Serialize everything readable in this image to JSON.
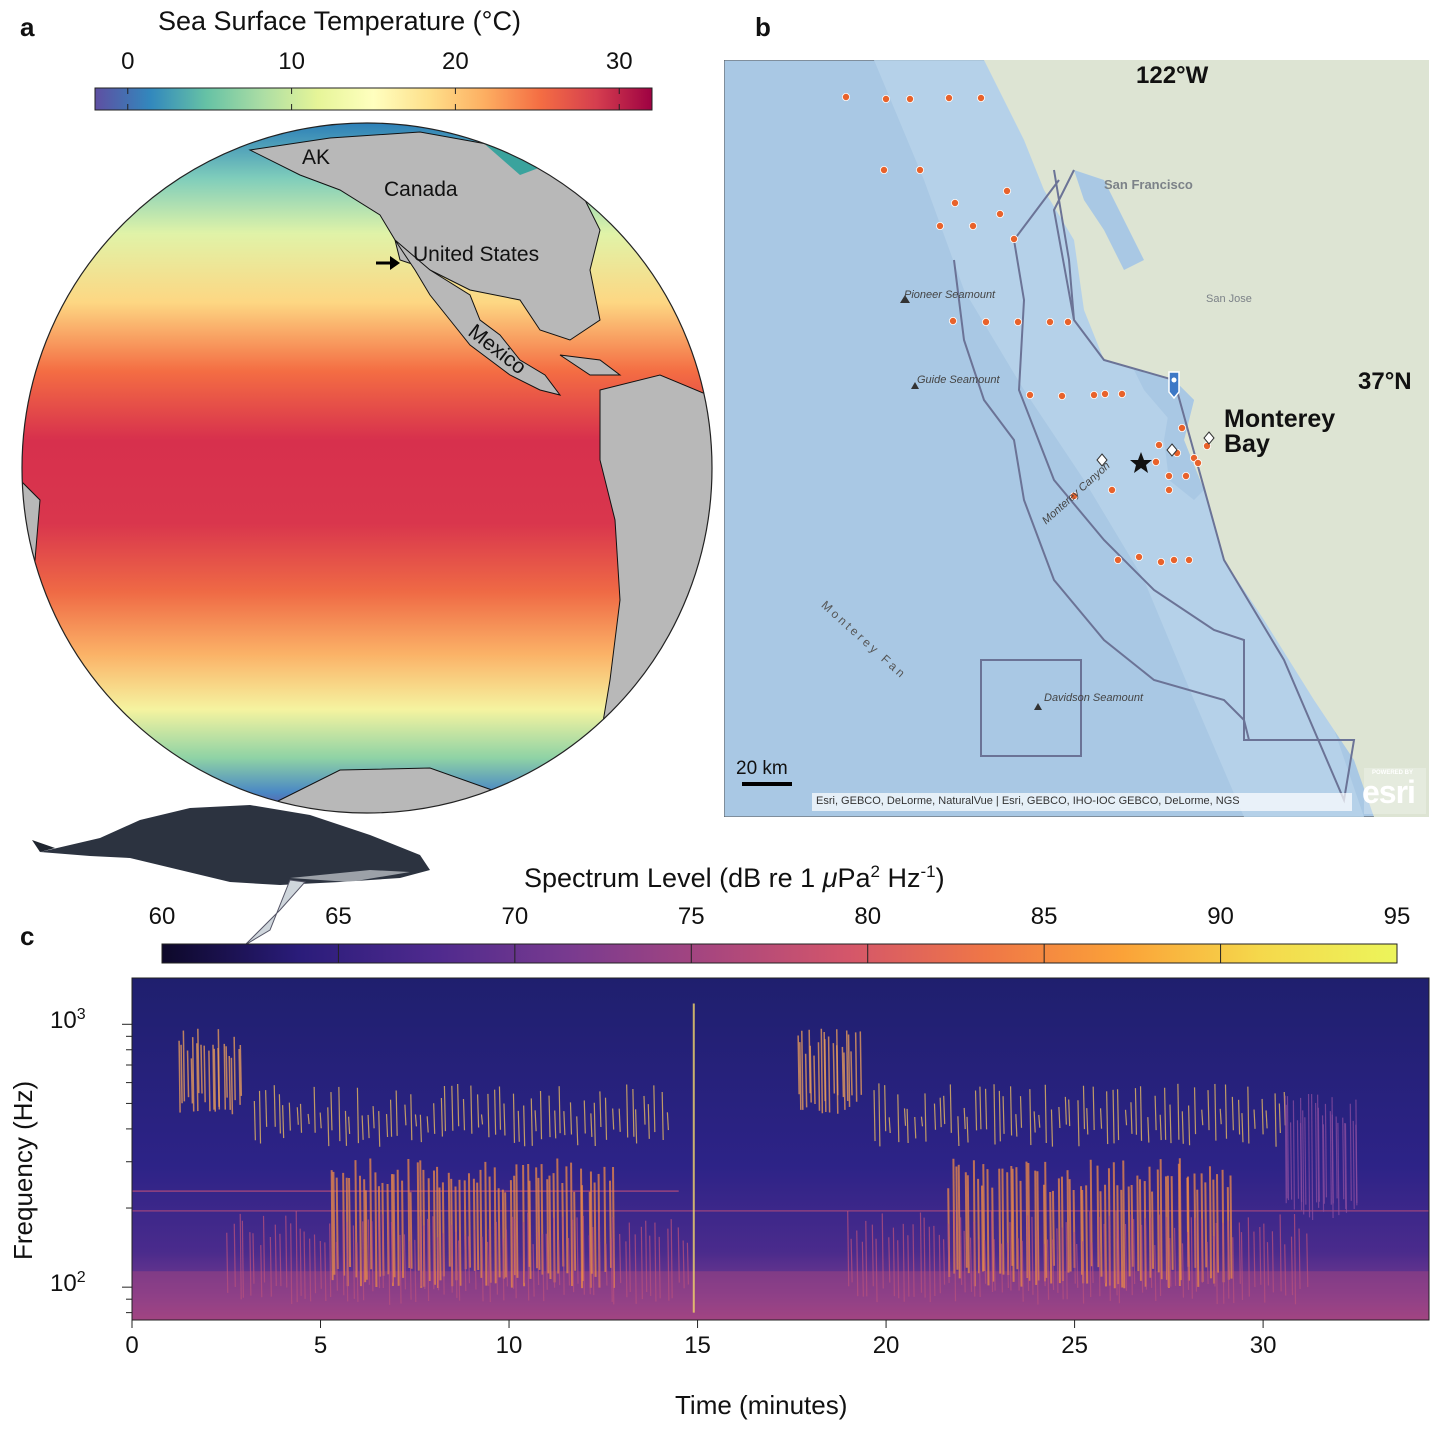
{
  "panels": {
    "a": {
      "letter": "a",
      "colorbar": {
        "title": "Sea Surface Temperature (°C)",
        "ticks": [
          "0",
          "10",
          "20",
          "30"
        ],
        "range": [
          -2,
          32
        ],
        "tick_values": [
          0,
          10,
          20,
          30
        ],
        "colors": [
          "#5e4fa2",
          "#3288bd",
          "#66c2a5",
          "#abdda4",
          "#e6f598",
          "#ffffbf",
          "#fee08b",
          "#fdae61",
          "#f46d43",
          "#d53e4f",
          "#9e0142"
        ]
      },
      "labels": {
        "ak": "AK",
        "canada": "Canada",
        "united_states": "United States",
        "mexico": "Mexico"
      }
    },
    "b": {
      "letter": "b",
      "lon_label": "122°W",
      "lat_label": "37°N",
      "bay_label_1": "Monterey",
      "bay_label_2": "Bay",
      "places": {
        "san_francisco": "San Francisco",
        "san_jose": "San Jose",
        "pioneer": "Pioneer Seamount",
        "guide": "Guide Seamount",
        "davidson": "Davidson Seamount",
        "canyon": "Monterey Canyon",
        "fan": "Monterey Fan"
      },
      "scale_label": "20 km",
      "attribution": "Esri, GEBCO, DeLorme, NaturalVue | Esri, GEBCO, IHO-IOC GEBCO, DeLorme, NGS",
      "logo_small": "POWERED BY",
      "logo": "esri",
      "colors": {
        "ocean": "#a9c8e4",
        "land": "#dde4d3",
        "dot": "#e8622b",
        "boundary": "#6b7396"
      }
    },
    "c": {
      "letter": "c",
      "colorbar": {
        "title_main": "Spectrum Level (dB re 1 ",
        "title_mu": "μ",
        "title_pa": "Pa",
        "title_sup1": "2",
        "title_hz": " Hz",
        "title_sup2": "-1",
        "title_end": ")",
        "ticks": [
          "60",
          "65",
          "70",
          "75",
          "80",
          "85",
          "90",
          "95"
        ],
        "tick_values": [
          60,
          65,
          70,
          75,
          80,
          85,
          90,
          95
        ],
        "range": [
          60,
          95
        ],
        "colors": [
          "#0d0829",
          "#2a1c7a",
          "#4f2a8e",
          "#7a3b8f",
          "#a8467e",
          "#d4566a",
          "#ef7647",
          "#fba238",
          "#f5d84b",
          "#ecf55b"
        ]
      },
      "xaxis": {
        "label": "Time (minutes)",
        "ticks": [
          "0",
          "5",
          "10",
          "15",
          "20",
          "25",
          "30"
        ],
        "tick_values": [
          0,
          5,
          10,
          15,
          20,
          25,
          30
        ],
        "range": [
          0,
          34.4
        ]
      },
      "yaxis": {
        "label": "Frequency (Hz)",
        "scale": "log",
        "range": [
          75,
          1500
        ],
        "major_ticks": [
          100,
          1000
        ],
        "major_base": "10",
        "major_exp": [
          "2",
          "3"
        ]
      }
    }
  }
}
